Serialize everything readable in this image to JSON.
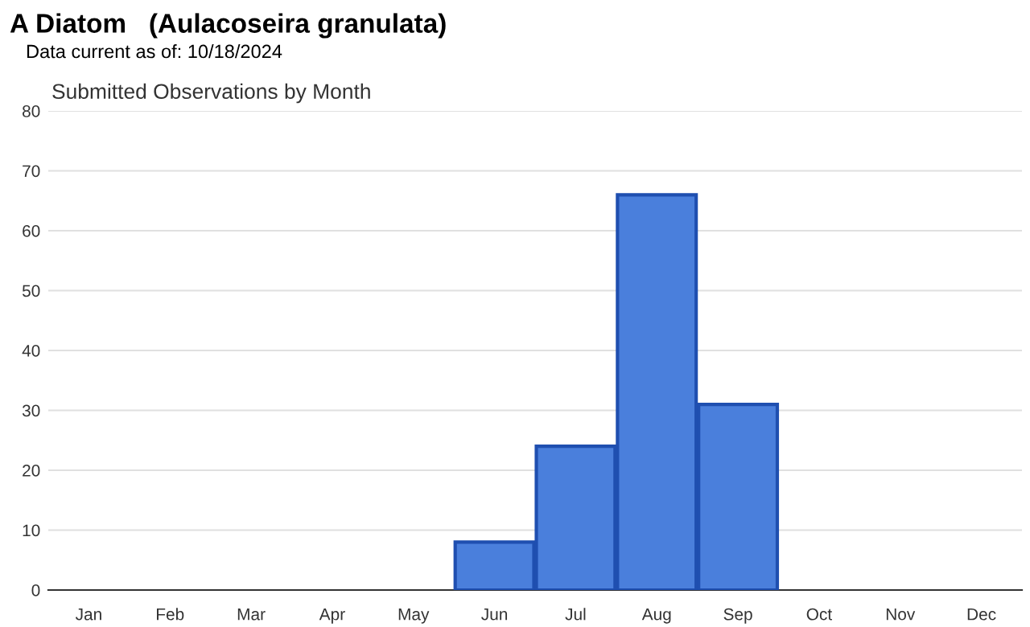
{
  "chart_data": {
    "type": "bar",
    "title": "A Diatom   (Aulacoseira granulata)",
    "subtitle": "Data current as of: 10/18/2024",
    "annotations": [
      "Submitted Observations by Month"
    ],
    "categories": [
      "Jan",
      "Feb",
      "Mar",
      "Apr",
      "May",
      "Jun",
      "Jul",
      "Aug",
      "Sep",
      "Oct",
      "Nov",
      "Dec"
    ],
    "values": [
      0,
      0,
      0,
      0,
      0,
      8,
      24,
      66,
      31,
      0,
      0,
      0
    ],
    "color": "#4a7fdc",
    "ylim": [
      0,
      80
    ],
    "yticks": [
      0,
      10,
      20,
      30,
      40,
      50,
      60,
      70,
      80
    ],
    "grid": "y",
    "legend": false
  }
}
